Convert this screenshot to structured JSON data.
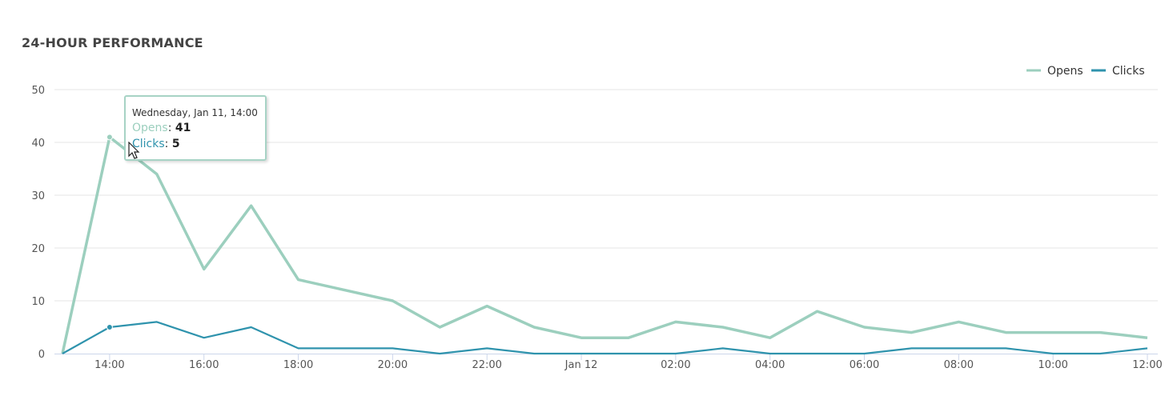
{
  "panel": {
    "title": "24-HOUR PERFORMANCE"
  },
  "colors": {
    "opens": "#9ccfbe",
    "clicks": "#2f93ad",
    "grid": "#e6e6e6",
    "axis": "#ccd6eb"
  },
  "tooltip": {
    "header": "Wednesday, Jan 11, 14:00",
    "rows": [
      {
        "label": "Opens",
        "sep": ": ",
        "value": "41"
      },
      {
        "label": "Clicks",
        "sep": ": ",
        "value": "5"
      }
    ]
  },
  "chart_data": {
    "type": "line",
    "x": [
      "13:00",
      "14:00",
      "15:00",
      "16:00",
      "17:00",
      "18:00",
      "19:00",
      "20:00",
      "21:00",
      "22:00",
      "23:00",
      "00:00",
      "01:00",
      "02:00",
      "03:00",
      "04:00",
      "05:00",
      "06:00",
      "07:00",
      "08:00",
      "09:00",
      "10:00",
      "11:00",
      "12:00"
    ],
    "xtick_labels": [
      "14:00",
      "16:00",
      "18:00",
      "20:00",
      "22:00",
      "Jan 12",
      "02:00",
      "04:00",
      "06:00",
      "08:00",
      "10:00",
      "12:00"
    ],
    "yticks": [
      0,
      10,
      20,
      30,
      40,
      50
    ],
    "ylim": [
      0,
      50
    ],
    "series": [
      {
        "name": "Opens",
        "values": [
          0,
          41,
          34,
          16,
          28,
          14,
          12,
          10,
          5,
          9,
          5,
          3,
          3,
          6,
          5,
          3,
          8,
          5,
          4,
          6,
          4,
          4,
          4,
          3
        ]
      },
      {
        "name": "Clicks",
        "values": [
          0,
          5,
          6,
          3,
          5,
          1,
          1,
          1,
          0,
          1,
          0,
          0,
          0,
          0,
          1,
          0,
          0,
          0,
          1,
          1,
          1,
          0,
          0,
          1
        ]
      }
    ],
    "highlight_index": 1,
    "legend_position": "top-right",
    "grid": true
  }
}
